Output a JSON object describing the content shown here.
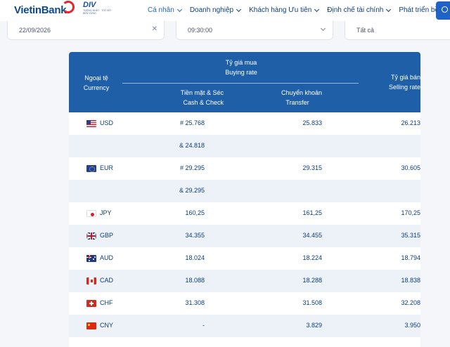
{
  "header": {
    "logo": "VietinBank",
    "badge_title": "DIV",
    "badge_sub": "THÔNG NHẤT · TỐC ĐỘ · BỀN VỮNG",
    "nav": [
      {
        "label": "Cá nhân",
        "active": true
      },
      {
        "label": "Doanh nghiệp",
        "active": false
      },
      {
        "label": "Khách hàng Ưu tiên",
        "active": false
      },
      {
        "label": "Định chế tài chính",
        "active": false
      },
      {
        "label": "Phát triển bền vững",
        "active": false
      }
    ]
  },
  "filters": {
    "date": "22/09/2026",
    "time": "09:30:00",
    "type": "Tất cả"
  },
  "table": {
    "headers": {
      "currency_vi": "Ngoại tệ",
      "currency_en": "Currency",
      "buying_vi": "Tỷ giá mua",
      "buying_en": "Buying rate",
      "cash_vi": "Tiền mặt & Séc",
      "cash_en": "Cash & Check",
      "transfer_vi": "Chuyển khoản",
      "transfer_en": "Transfer",
      "selling_vi": "Tỷ giá bán",
      "selling_en": "Selling rate"
    },
    "rows": [
      {
        "flag": "us-flag",
        "code": "USD",
        "cash": "# 25.768",
        "transfer": "25.833",
        "sell": "26.213"
      },
      {
        "flag": "",
        "code": "",
        "cash": "& 24.818",
        "transfer": "",
        "sell": ""
      },
      {
        "flag": "eu-flag",
        "code": "EUR",
        "cash": "# 29.295",
        "transfer": "29.315",
        "sell": "30.605"
      },
      {
        "flag": "",
        "code": "",
        "cash": "& 29.295",
        "transfer": "",
        "sell": ""
      },
      {
        "flag": "jp-flag",
        "code": "JPY",
        "cash": "160,25",
        "transfer": "161,25",
        "sell": "170,25"
      },
      {
        "flag": "gb-flag",
        "code": "GBP",
        "cash": "34.355",
        "transfer": "34.455",
        "sell": "35.315"
      },
      {
        "flag": "au-flag",
        "code": "AUD",
        "cash": "18.024",
        "transfer": "18.224",
        "sell": "18.794"
      },
      {
        "flag": "ca-flag",
        "code": "CAD",
        "cash": "18.088",
        "transfer": "18.288",
        "sell": "18.838"
      },
      {
        "flag": "ch-flag",
        "code": "CHF",
        "cash": "31.308",
        "transfer": "31.508",
        "sell": "32.208"
      },
      {
        "flag": "cn-flag",
        "code": "CNY",
        "cash": "-",
        "transfer": "3.829",
        "sell": "3.950"
      }
    ]
  },
  "colors": {
    "header_blue": "#1e5fa8",
    "text_blue": "#0b3d78",
    "alt_row": "#edf2f9",
    "accent_red": "#e3262f"
  }
}
